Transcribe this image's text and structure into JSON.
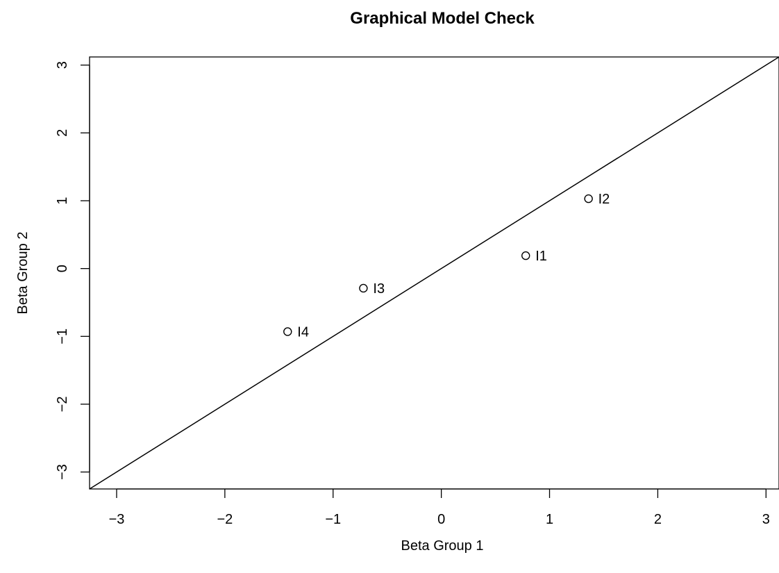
{
  "chart_data": {
    "type": "scatter",
    "title": "Graphical Model Check",
    "xlabel": "Beta Group 1",
    "ylabel": "Beta Group 2",
    "xlim": [
      -3.25,
      3.12
    ],
    "ylim": [
      -3.25,
      3.12
    ],
    "xticks": [
      -3,
      -2,
      -1,
      0,
      1,
      2,
      3
    ],
    "yticks": [
      -3,
      -2,
      -1,
      0,
      1,
      2,
      3
    ],
    "xtick_labels": [
      "−3",
      "−2",
      "−1",
      "0",
      "1",
      "2",
      "3"
    ],
    "ytick_labels": [
      "−3",
      "−2",
      "−1",
      "0",
      "1",
      "2",
      "3"
    ],
    "reference_line": "y = x",
    "grid": false,
    "points": [
      {
        "label": "I1",
        "x": 0.78,
        "y": 0.19
      },
      {
        "label": "I2",
        "x": 1.36,
        "y": 1.03
      },
      {
        "label": "I3",
        "x": -0.72,
        "y": -0.29
      },
      {
        "label": "I4",
        "x": -1.42,
        "y": -0.93
      }
    ],
    "colors": {
      "ink": "#000000",
      "background": "#ffffff"
    }
  }
}
